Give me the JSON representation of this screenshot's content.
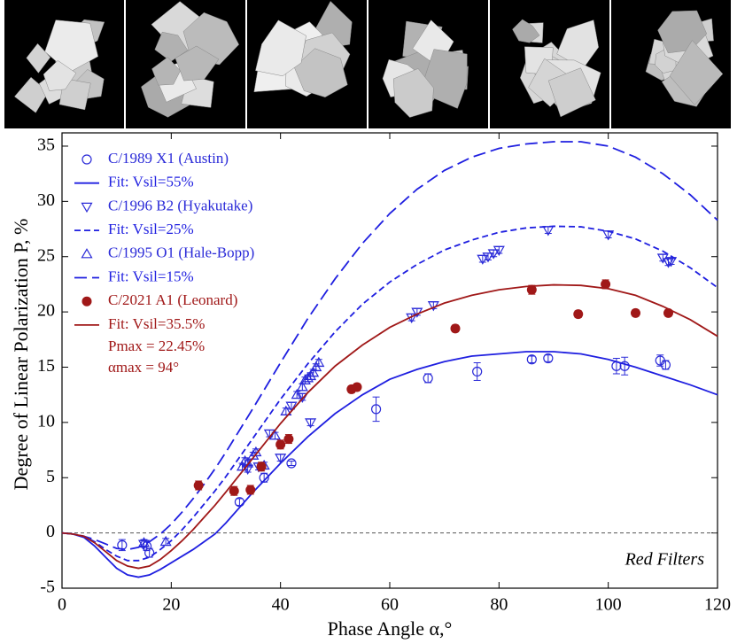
{
  "chart_data": {
    "type": "scatter",
    "x_label": "Phase Angle α,°",
    "y_label": "Degree of Linear Polarization P, %",
    "annotations": [
      "Pmax = 22.45%",
      "αmax = 94°",
      "Red Filters"
    ],
    "xlim": [
      0,
      120
    ],
    "ylim": [
      -5,
      36.2
    ],
    "xticks": [
      0,
      20,
      40,
      60,
      80,
      100,
      120
    ],
    "yticks": [
      -5,
      0,
      5,
      10,
      15,
      20,
      25,
      30,
      35
    ],
    "zero_line": true,
    "series": [
      {
        "name": "C/1989 X1 (Austin)",
        "type": "scatter",
        "marker": "circle",
        "color": "#2b2bd8",
        "x": [
          11,
          15.5,
          16,
          32.5,
          37,
          42,
          57.5,
          67,
          76,
          86,
          89,
          101.5,
          103,
          109.5,
          110.5
        ],
        "values": [
          -1.1,
          -1.2,
          -1.8,
          2.8,
          5.0,
          6.3,
          11.2,
          14.0,
          14.6,
          15.7,
          15.8,
          15.1,
          15.1,
          15.6,
          15.2
        ],
        "errors": [
          0.5,
          0.4,
          0.4,
          0.3,
          0.4,
          0.2,
          1.1,
          0.4,
          0.8,
          0.3,
          0.3,
          0.7,
          0.8,
          0.5,
          0.4
        ]
      },
      {
        "name": "Fit: Vsil=55%",
        "type": "line",
        "dash": "solid",
        "color": "#1f1fe0",
        "x": [
          0,
          2,
          4,
          6,
          8,
          10,
          12,
          14,
          16,
          18,
          20,
          22,
          24,
          26,
          28,
          30,
          35,
          40,
          45,
          50,
          55,
          60,
          65,
          70,
          75,
          80,
          85,
          90,
          95,
          100,
          105,
          110,
          115,
          120
        ],
        "values": [
          0,
          -0.1,
          -0.4,
          -1.2,
          -2.2,
          -3.2,
          -3.8,
          -4.0,
          -3.8,
          -3.3,
          -2.7,
          -2.1,
          -1.5,
          -0.8,
          -0.1,
          0.9,
          3.7,
          6.3,
          8.7,
          10.8,
          12.5,
          13.9,
          14.8,
          15.5,
          16.0,
          16.2,
          16.4,
          16.4,
          16.2,
          15.7,
          15.0,
          14.2,
          13.4,
          12.5
        ]
      },
      {
        "name": "C/1996 B2 (Hyakutake)",
        "type": "scatter",
        "marker": "triangle-down",
        "color": "#2b2bd8",
        "x": [
          15,
          34,
          36,
          38,
          40,
          42,
          44,
          45.5,
          64,
          65,
          68,
          77,
          78,
          79,
          80,
          89,
          100,
          110,
          111,
          111.5
        ],
        "values": [
          -1.0,
          5.8,
          6.0,
          9.0,
          6.8,
          11.5,
          12.3,
          10.0,
          19.5,
          20.0,
          20.6,
          24.8,
          25.0,
          25.3,
          25.6,
          27.4,
          27.0,
          24.9,
          24.5,
          24.6
        ],
        "errors": [
          0.3,
          0.3,
          0.3,
          0.3,
          0.3,
          0.3,
          0.3,
          0.3,
          0.3,
          0.3,
          0.3,
          0.3,
          0.3,
          0.3,
          0.3,
          0.3,
          0.3,
          0.3,
          0.3,
          0.3
        ]
      },
      {
        "name": "Fit: Vsil=25%",
        "type": "line",
        "dash": "short",
        "color": "#1f1fe0",
        "x": [
          0,
          2,
          4,
          6,
          8,
          10,
          12,
          14,
          16,
          18,
          20,
          22,
          24,
          26,
          28,
          30,
          35,
          40,
          45,
          50,
          55,
          60,
          65,
          70,
          75,
          80,
          85,
          90,
          95,
          100,
          105,
          110,
          115,
          120
        ],
        "values": [
          0,
          -0.1,
          -0.3,
          -0.8,
          -1.5,
          -2.1,
          -2.5,
          -2.5,
          -2.2,
          -1.5,
          -0.7,
          0.3,
          1.4,
          2.6,
          3.8,
          5.1,
          8.6,
          12.1,
          15.3,
          18.2,
          20.7,
          22.7,
          24.3,
          25.6,
          26.5,
          27.2,
          27.6,
          27.75,
          27.7,
          27.3,
          26.6,
          25.5,
          24.0,
          22.2
        ]
      },
      {
        "name": "C/1995 O1 (Hale-Bopp)",
        "type": "scatter",
        "marker": "triangle-up",
        "color": "#2b2bd8",
        "x": [
          15,
          19,
          33,
          33.5,
          34,
          35,
          35.5,
          37,
          39,
          41,
          43,
          44,
          44.5,
          45,
          45.5,
          46,
          46.5,
          47
        ],
        "values": [
          -0.9,
          -0.8,
          6.0,
          6.5,
          6.3,
          7.0,
          7.3,
          6.1,
          8.8,
          11.0,
          12.5,
          13.2,
          13.8,
          14.0,
          14.2,
          14.5,
          15.0,
          15.4
        ],
        "errors": [
          0.3,
          0.3,
          0.3,
          0.3,
          0.3,
          0.3,
          0.3,
          0.3,
          0.3,
          0.3,
          0.3,
          0.3,
          0.3,
          0.3,
          0.3,
          0.3,
          0.3,
          0.3
        ]
      },
      {
        "name": "Fit: Vsil=15%",
        "type": "line",
        "dash": "long",
        "color": "#1f1fe0",
        "x": [
          0,
          2,
          4,
          6,
          8,
          10,
          12,
          14,
          16,
          18,
          20,
          22,
          24,
          26,
          28,
          30,
          35,
          40,
          45,
          50,
          55,
          60,
          65,
          70,
          75,
          80,
          85,
          90,
          95,
          100,
          105,
          110,
          115,
          120
        ],
        "values": [
          0,
          -0.1,
          -0.3,
          -0.6,
          -1.0,
          -1.4,
          -1.5,
          -1.3,
          -0.8,
          -0.1,
          0.8,
          1.9,
          3.1,
          4.4,
          5.8,
          7.3,
          11.3,
          15.4,
          19.4,
          23.0,
          26.2,
          28.9,
          31.1,
          32.8,
          34.0,
          34.8,
          35.2,
          35.4,
          35.4,
          35.0,
          34.0,
          32.5,
          30.6,
          28.3
        ]
      },
      {
        "name": "C/2021 A1 (Leonard)",
        "type": "scatter",
        "marker": "filled-circle",
        "color": "#a01818",
        "x": [
          25,
          31.5,
          34.5,
          36.5,
          40,
          41.5,
          53,
          54,
          72,
          86,
          94.5,
          99.5,
          105,
          111
        ],
        "values": [
          4.3,
          3.8,
          3.9,
          6.0,
          8.0,
          8.5,
          13.0,
          13.2,
          18.5,
          22.0,
          19.8,
          22.5,
          19.9,
          19.9
        ],
        "errors": [
          0.4,
          0.4,
          0.4,
          0.4,
          0.4,
          0.4,
          0.3,
          0.3,
          0.3,
          0.4,
          0.3,
          0.4,
          0.3,
          0.3
        ]
      },
      {
        "name": "Fit: Vsil=35.5%",
        "type": "line",
        "dash": "solid",
        "color": "#a01818",
        "x": [
          0,
          2,
          4,
          6,
          8,
          10,
          12,
          14,
          16,
          18,
          20,
          22,
          24,
          26,
          28,
          30,
          35,
          40,
          45,
          50,
          55,
          60,
          65,
          70,
          75,
          80,
          85,
          90,
          95,
          100,
          105,
          110,
          115,
          120
        ],
        "values": [
          0,
          -0.1,
          -0.3,
          -0.9,
          -1.7,
          -2.5,
          -3.0,
          -3.2,
          -3.0,
          -2.4,
          -1.6,
          -0.7,
          0.3,
          1.4,
          2.5,
          3.7,
          6.8,
          9.9,
          12.7,
          15.1,
          17.0,
          18.6,
          19.8,
          20.8,
          21.5,
          22.0,
          22.3,
          22.45,
          22.4,
          22.1,
          21.5,
          20.5,
          19.3,
          17.8
        ]
      }
    ]
  }
}
